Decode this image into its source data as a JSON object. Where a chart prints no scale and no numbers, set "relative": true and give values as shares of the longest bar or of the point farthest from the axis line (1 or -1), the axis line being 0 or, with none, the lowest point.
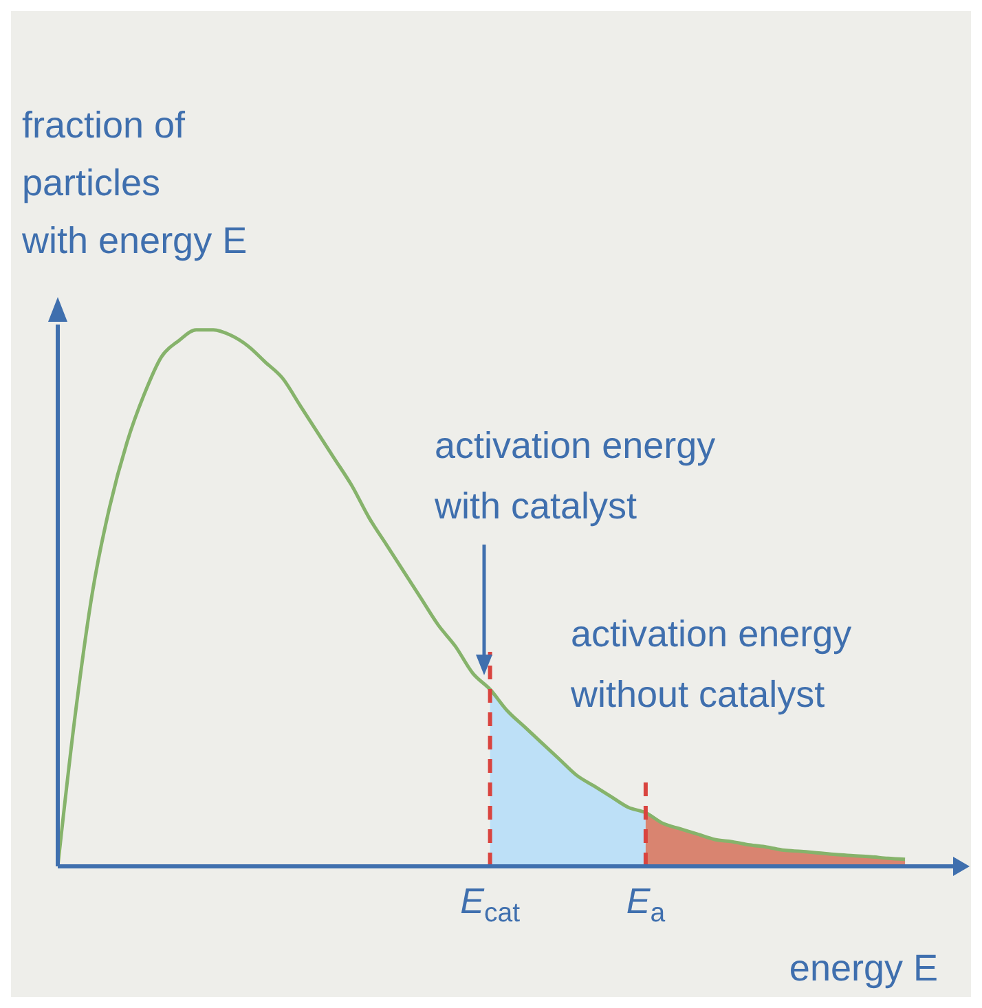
{
  "chart_data": {
    "type": "line",
    "relative": true,
    "ylabel": "fraction of\nparticles\nwith energy E",
    "xlabel": "energy E",
    "categories": [
      null,
      null,
      null,
      null,
      null,
      null,
      null,
      null,
      null,
      null,
      null,
      null,
      null,
      null,
      null,
      null,
      null,
      null,
      null,
      null,
      null,
      null,
      null,
      null,
      null,
      "E$_{cat}$",
      null,
      null,
      null,
      null,
      null,
      null,
      null,
      null,
      "E$_{a}$",
      null,
      null,
      null,
      null,
      null,
      null,
      null,
      null,
      null,
      null,
      null,
      null,
      null,
      null,
      null
    ],
    "series": [
      {
        "type": "area",
        "color": "#bde0f7",
        "values": [
          null,
          null,
          null,
          null,
          null,
          null,
          null,
          null,
          null,
          null,
          null,
          null,
          null,
          null,
          null,
          null,
          null,
          null,
          null,
          null,
          null,
          null,
          null,
          null,
          null,
          0.33,
          0.29,
          0.26,
          0.23,
          0.2,
          0.17,
          0.15,
          0.13,
          0.11,
          0.1,
          null,
          null,
          null,
          null,
          null,
          null,
          null,
          null,
          null,
          null,
          null,
          null,
          null,
          null,
          null
        ]
      },
      {
        "type": "area",
        "color": "#d98470",
        "values": [
          null,
          null,
          null,
          null,
          null,
          null,
          null,
          null,
          null,
          null,
          null,
          null,
          null,
          null,
          null,
          null,
          null,
          null,
          null,
          null,
          null,
          null,
          null,
          null,
          null,
          null,
          null,
          null,
          null,
          null,
          null,
          null,
          null,
          null,
          0.1,
          0.08,
          0.07,
          0.06,
          0.05,
          0.046,
          0.04,
          0.036,
          0.03,
          0.028,
          0.025,
          0.022,
          0.02,
          0.018,
          0.015,
          0.013
        ]
      },
      {
        "type": "line",
        "color": "#86b36b",
        "values": [
          0,
          0.28,
          0.51,
          0.67,
          0.79,
          0.88,
          0.95,
          0.98,
          1,
          1,
          0.99,
          0.97,
          0.94,
          0.91,
          0.86,
          0.81,
          0.76,
          0.71,
          0.65,
          0.6,
          0.55,
          0.5,
          0.45,
          0.41,
          0.36,
          0.33,
          0.29,
          0.26,
          0.23,
          0.2,
          0.17,
          0.15,
          0.13,
          0.11,
          0.1,
          0.08,
          0.07,
          0.06,
          0.05,
          0.046,
          0.04,
          0.036,
          0.03,
          0.028,
          0.025,
          0.022,
          0.02,
          0.018,
          0.015,
          0.013
        ]
      }
    ],
    "ref_lines": [
      {
        "axis": "x",
        "value": "E$_{cat}$",
        "color": "#d9443f",
        "line_style": "dashed"
      },
      {
        "axis": "x",
        "value": "E$_{a}$",
        "color": "#d9443f",
        "line_style": "dashed"
      }
    ],
    "annotations": [
      "activation energy\nwith catalyst",
      "activation energy\nwithout catalyst"
    ],
    "marker": "none",
    "line_style": "solid"
  }
}
